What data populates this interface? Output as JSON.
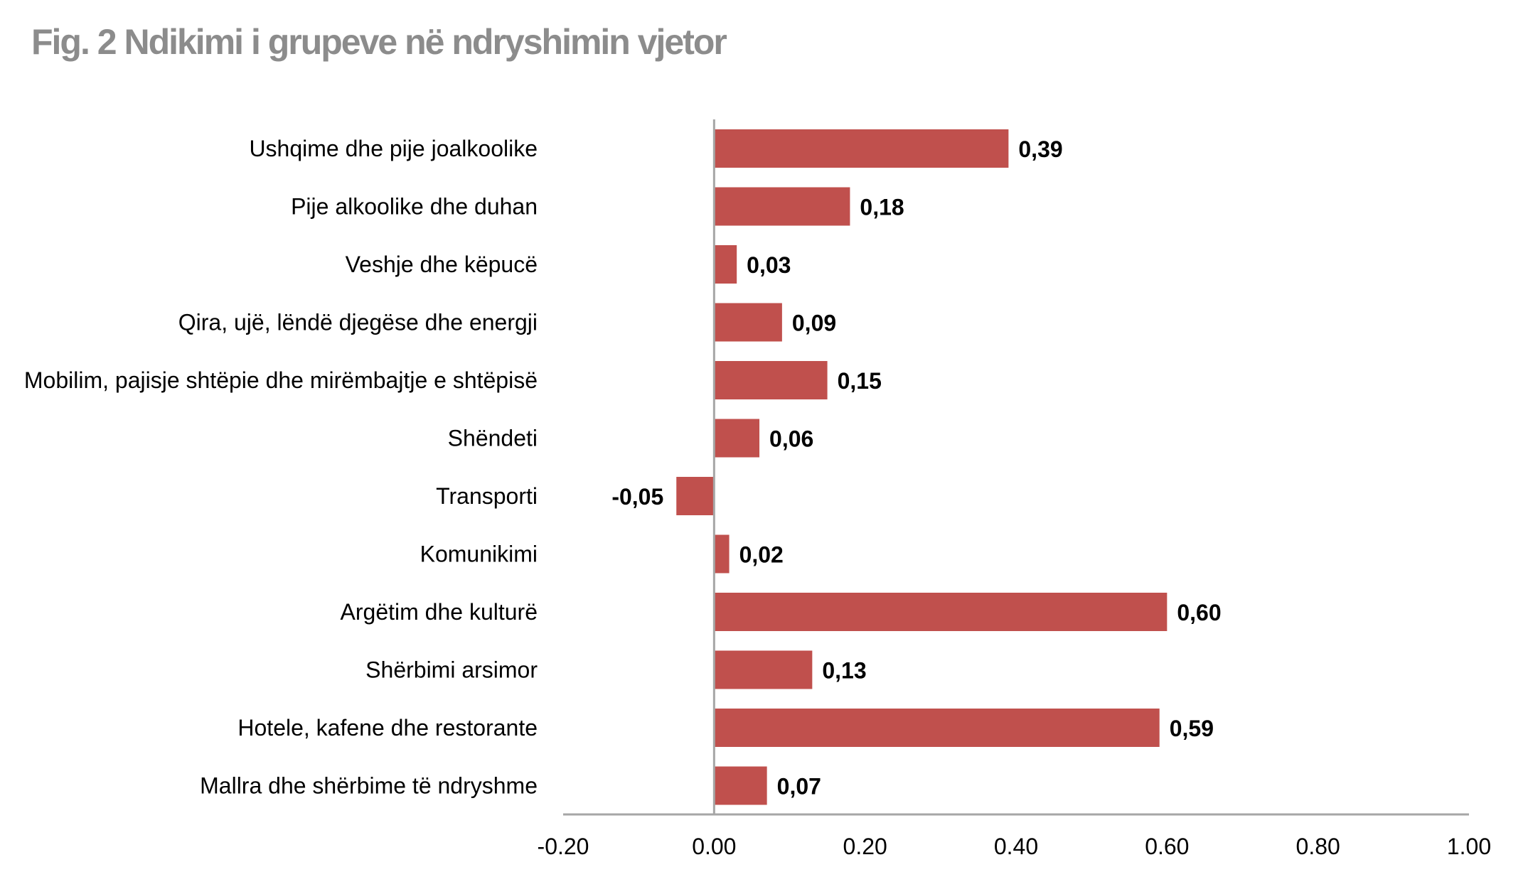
{
  "chart_data": {
    "type": "bar",
    "orientation": "horizontal",
    "title": "Fig. 2 Ndikimi i grupeve në ndryshimin vjetor",
    "categories": [
      "Ushqime dhe pije joalkoolike",
      "Pije alkoolike dhe duhan",
      "Veshje dhe këpucë",
      "Qira, ujë, lëndë djegëse dhe energji",
      "Mobilim, pajisje shtëpie dhe mirëmbajtje e shtëpisë",
      "Shëndeti",
      "Transporti",
      "Komunikimi",
      "Argëtim dhe kulturë",
      "Shërbimi arsimor",
      "Hotele, kafene dhe restorante",
      "Mallra dhe shërbime të ndryshme"
    ],
    "values": [
      0.39,
      0.18,
      0.03,
      0.09,
      0.15,
      0.06,
      -0.05,
      0.02,
      0.6,
      0.13,
      0.59,
      0.07
    ],
    "value_labels": [
      "0,39",
      "0,18",
      "0,03",
      "0,09",
      "0,15",
      "0,06",
      "-0,05",
      "0,02",
      "0,60",
      "0,13",
      "0,59",
      "0,07"
    ],
    "xlim": [
      -0.2,
      1.0
    ],
    "xticks": [
      "-0.20",
      "0.00",
      "0.20",
      "0.40",
      "0.60",
      "0.80",
      "1.00"
    ],
    "xtick_values": [
      -0.2,
      0.0,
      0.2,
      0.4,
      0.6,
      0.8,
      1.0
    ],
    "bar_color": "#C0504D",
    "axis_color": "#A6A6A6",
    "grid": false,
    "legend": "none"
  }
}
